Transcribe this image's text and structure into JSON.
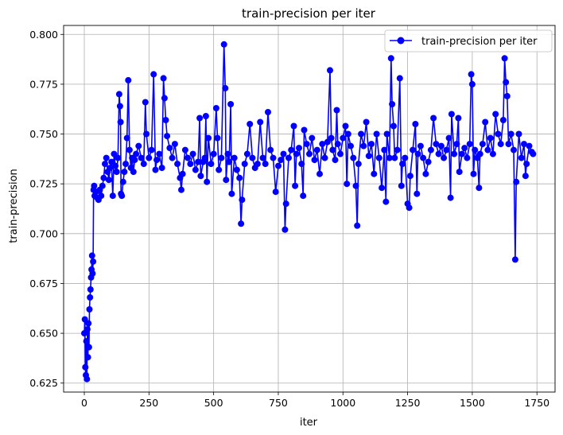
{
  "chart_data": {
    "type": "line",
    "title": "train-precision per iter",
    "xlabel": "iter",
    "ylabel": "train-precision",
    "xlim": [
      -80,
      1820
    ],
    "ylim": [
      0.6205,
      0.8045
    ],
    "xticks": [
      0,
      250,
      500,
      750,
      1000,
      1250,
      1500,
      1750
    ],
    "yticks": [
      0.625,
      0.65,
      0.675,
      0.7,
      0.725,
      0.75,
      0.775,
      0.8
    ],
    "grid": true,
    "legend_position": "top-right",
    "series": [
      {
        "name": "train-precision per iter",
        "color": "#0000ff",
        "marker": "circle",
        "points": [
          [
            0,
            0.65
          ],
          [
            2,
            0.657
          ],
          [
            4,
            0.633
          ],
          [
            6,
            0.629
          ],
          [
            8,
            0.646
          ],
          [
            10,
            0.627
          ],
          [
            12,
            0.652
          ],
          [
            14,
            0.638
          ],
          [
            16,
            0.655
          ],
          [
            18,
            0.643
          ],
          [
            20,
            0.662
          ],
          [
            22,
            0.668
          ],
          [
            24,
            0.672
          ],
          [
            26,
            0.678
          ],
          [
            28,
            0.682
          ],
          [
            30,
            0.689
          ],
          [
            32,
            0.68
          ],
          [
            34,
            0.686
          ],
          [
            36,
            0.722
          ],
          [
            38,
            0.724
          ],
          [
            40,
            0.719
          ],
          [
            45,
            0.721
          ],
          [
            50,
            0.718
          ],
          [
            55,
            0.717
          ],
          [
            60,
            0.722
          ],
          [
            65,
            0.719
          ],
          [
            70,
            0.724
          ],
          [
            75,
            0.728
          ],
          [
            80,
            0.735
          ],
          [
            85,
            0.738
          ],
          [
            90,
            0.731
          ],
          [
            95,
            0.727
          ],
          [
            100,
            0.733
          ],
          [
            105,
            0.736
          ],
          [
            110,
            0.719
          ],
          [
            115,
            0.74
          ],
          [
            120,
            0.734
          ],
          [
            125,
            0.731
          ],
          [
            130,
            0.738
          ],
          [
            135,
            0.77
          ],
          [
            138,
            0.764
          ],
          [
            140,
            0.756
          ],
          [
            142,
            0.72
          ],
          [
            145,
            0.719
          ],
          [
            150,
            0.726
          ],
          [
            155,
            0.731
          ],
          [
            160,
            0.735
          ],
          [
            165,
            0.748
          ],
          [
            170,
            0.777
          ],
          [
            175,
            0.742
          ],
          [
            180,
            0.733
          ],
          [
            185,
            0.738
          ],
          [
            190,
            0.731
          ],
          [
            195,
            0.737
          ],
          [
            200,
            0.74
          ],
          [
            210,
            0.744
          ],
          [
            220,
            0.738
          ],
          [
            230,
            0.735
          ],
          [
            236,
            0.766
          ],
          [
            240,
            0.75
          ],
          [
            250,
            0.738
          ],
          [
            260,
            0.742
          ],
          [
            268,
            0.78
          ],
          [
            275,
            0.732
          ],
          [
            280,
            0.737
          ],
          [
            290,
            0.74
          ],
          [
            300,
            0.733
          ],
          [
            306,
            0.778
          ],
          [
            310,
            0.768
          ],
          [
            315,
            0.757
          ],
          [
            320,
            0.749
          ],
          [
            330,
            0.743
          ],
          [
            340,
            0.738
          ],
          [
            350,
            0.745
          ],
          [
            360,
            0.735
          ],
          [
            370,
            0.728
          ],
          [
            375,
            0.722
          ],
          [
            380,
            0.73
          ],
          [
            390,
            0.742
          ],
          [
            400,
            0.738
          ],
          [
            410,
            0.735
          ],
          [
            420,
            0.74
          ],
          [
            430,
            0.732
          ],
          [
            440,
            0.736
          ],
          [
            446,
            0.758
          ],
          [
            450,
            0.729
          ],
          [
            460,
            0.736
          ],
          [
            466,
            0.738
          ],
          [
            470,
            0.759
          ],
          [
            474,
            0.726
          ],
          [
            480,
            0.748
          ],
          [
            490,
            0.735
          ],
          [
            500,
            0.74
          ],
          [
            510,
            0.763
          ],
          [
            515,
            0.748
          ],
          [
            520,
            0.732
          ],
          [
            530,
            0.738
          ],
          [
            540,
            0.795
          ],
          [
            545,
            0.773
          ],
          [
            548,
            0.727
          ],
          [
            555,
            0.74
          ],
          [
            560,
            0.736
          ],
          [
            566,
            0.765
          ],
          [
            570,
            0.72
          ],
          [
            580,
            0.738
          ],
          [
            590,
            0.732
          ],
          [
            600,
            0.728
          ],
          [
            606,
            0.705
          ],
          [
            610,
            0.717
          ],
          [
            620,
            0.735
          ],
          [
            630,
            0.74
          ],
          [
            640,
            0.755
          ],
          [
            650,
            0.738
          ],
          [
            660,
            0.733
          ],
          [
            670,
            0.735
          ],
          [
            680,
            0.756
          ],
          [
            690,
            0.738
          ],
          [
            700,
            0.735
          ],
          [
            710,
            0.761
          ],
          [
            720,
            0.742
          ],
          [
            730,
            0.738
          ],
          [
            740,
            0.721
          ],
          [
            750,
            0.734
          ],
          [
            760,
            0.737
          ],
          [
            770,
            0.74
          ],
          [
            776,
            0.702
          ],
          [
            780,
            0.715
          ],
          [
            790,
            0.738
          ],
          [
            800,
            0.742
          ],
          [
            810,
            0.754
          ],
          [
            815,
            0.724
          ],
          [
            820,
            0.74
          ],
          [
            830,
            0.743
          ],
          [
            840,
            0.735
          ],
          [
            846,
            0.719
          ],
          [
            850,
            0.752
          ],
          [
            860,
            0.745
          ],
          [
            870,
            0.74
          ],
          [
            880,
            0.748
          ],
          [
            890,
            0.737
          ],
          [
            900,
            0.742
          ],
          [
            910,
            0.73
          ],
          [
            920,
            0.745
          ],
          [
            930,
            0.738
          ],
          [
            940,
            0.746
          ],
          [
            950,
            0.782
          ],
          [
            955,
            0.748
          ],
          [
            960,
            0.742
          ],
          [
            970,
            0.737
          ],
          [
            976,
            0.762
          ],
          [
            980,
            0.745
          ],
          [
            990,
            0.74
          ],
          [
            1000,
            0.748
          ],
          [
            1010,
            0.754
          ],
          [
            1015,
            0.725
          ],
          [
            1020,
            0.75
          ],
          [
            1030,
            0.744
          ],
          [
            1040,
            0.738
          ],
          [
            1050,
            0.724
          ],
          [
            1055,
            0.704
          ],
          [
            1060,
            0.735
          ],
          [
            1070,
            0.75
          ],
          [
            1080,
            0.744
          ],
          [
            1090,
            0.756
          ],
          [
            1100,
            0.739
          ],
          [
            1110,
            0.745
          ],
          [
            1120,
            0.73
          ],
          [
            1130,
            0.75
          ],
          [
            1140,
            0.738
          ],
          [
            1150,
            0.723
          ],
          [
            1160,
            0.742
          ],
          [
            1166,
            0.716
          ],
          [
            1170,
            0.75
          ],
          [
            1180,
            0.738
          ],
          [
            1186,
            0.788
          ],
          [
            1190,
            0.765
          ],
          [
            1196,
            0.754
          ],
          [
            1200,
            0.738
          ],
          [
            1210,
            0.742
          ],
          [
            1220,
            0.778
          ],
          [
            1226,
            0.724
          ],
          [
            1230,
            0.735
          ],
          [
            1240,
            0.738
          ],
          [
            1250,
            0.715
          ],
          [
            1256,
            0.713
          ],
          [
            1260,
            0.729
          ],
          [
            1270,
            0.742
          ],
          [
            1280,
            0.755
          ],
          [
            1286,
            0.72
          ],
          [
            1290,
            0.74
          ],
          [
            1300,
            0.744
          ],
          [
            1310,
            0.738
          ],
          [
            1320,
            0.73
          ],
          [
            1330,
            0.736
          ],
          [
            1340,
            0.742
          ],
          [
            1350,
            0.758
          ],
          [
            1360,
            0.745
          ],
          [
            1370,
            0.74
          ],
          [
            1380,
            0.744
          ],
          [
            1390,
            0.738
          ],
          [
            1400,
            0.742
          ],
          [
            1410,
            0.748
          ],
          [
            1416,
            0.718
          ],
          [
            1420,
            0.76
          ],
          [
            1430,
            0.74
          ],
          [
            1440,
            0.745
          ],
          [
            1446,
            0.758
          ],
          [
            1450,
            0.731
          ],
          [
            1460,
            0.74
          ],
          [
            1470,
            0.743
          ],
          [
            1480,
            0.738
          ],
          [
            1490,
            0.745
          ],
          [
            1496,
            0.78
          ],
          [
            1500,
            0.775
          ],
          [
            1505,
            0.73
          ],
          [
            1510,
            0.742
          ],
          [
            1520,
            0.738
          ],
          [
            1526,
            0.723
          ],
          [
            1530,
            0.74
          ],
          [
            1540,
            0.745
          ],
          [
            1550,
            0.756
          ],
          [
            1560,
            0.742
          ],
          [
            1570,
            0.748
          ],
          [
            1580,
            0.74
          ],
          [
            1590,
            0.76
          ],
          [
            1600,
            0.75
          ],
          [
            1610,
            0.745
          ],
          [
            1620,
            0.757
          ],
          [
            1625,
            0.788
          ],
          [
            1630,
            0.776
          ],
          [
            1635,
            0.769
          ],
          [
            1640,
            0.745
          ],
          [
            1650,
            0.75
          ],
          [
            1660,
            0.742
          ],
          [
            1666,
            0.687
          ],
          [
            1670,
            0.726
          ],
          [
            1680,
            0.75
          ],
          [
            1690,
            0.738
          ],
          [
            1700,
            0.745
          ],
          [
            1706,
            0.729
          ],
          [
            1710,
            0.735
          ],
          [
            1720,
            0.744
          ],
          [
            1730,
            0.741
          ],
          [
            1735,
            0.74
          ]
        ]
      }
    ]
  }
}
